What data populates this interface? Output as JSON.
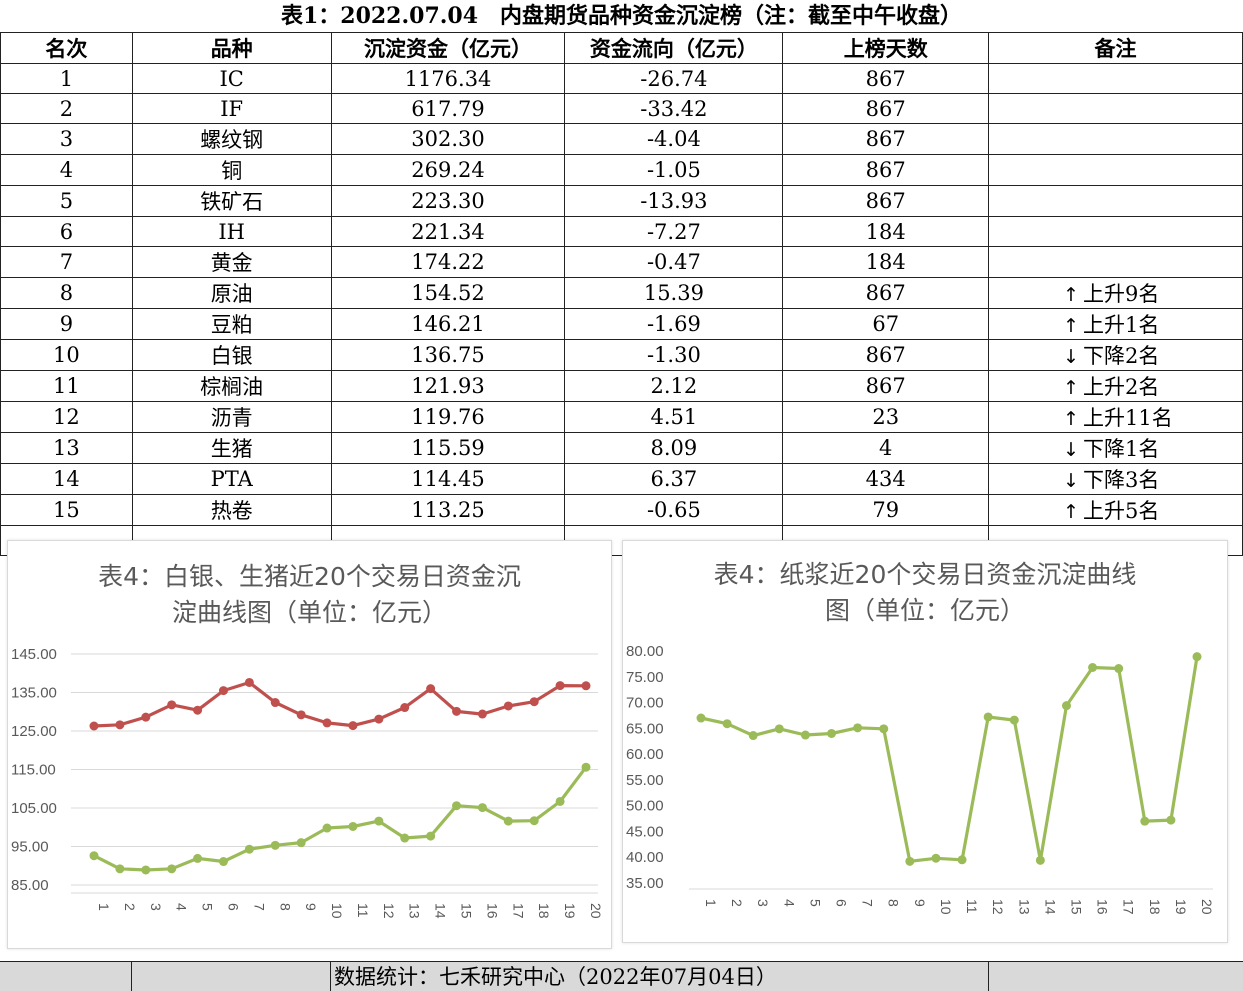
{
  "table_title": "表1：2022.07.04　内盘期货品种资金沉淀榜（注：截至中午收盘）",
  "headers": [
    "名次",
    "品种",
    "沉淀资金（亿元）",
    "资金流向（亿元）",
    "上榜天数",
    "备注"
  ],
  "rows": [
    [
      "1",
      "IC",
      "1176.34",
      "-26.74",
      "867",
      ""
    ],
    [
      "2",
      "IF",
      "617.79",
      "-33.42",
      "867",
      ""
    ],
    [
      "3",
      "螺纹钢",
      "302.30",
      "-4.04",
      "867",
      ""
    ],
    [
      "4",
      "铜",
      "269.24",
      "-1.05",
      "867",
      ""
    ],
    [
      "5",
      "铁矿石",
      "223.30",
      "-13.93",
      "867",
      ""
    ],
    [
      "6",
      "IH",
      "221.34",
      "-7.27",
      "184",
      ""
    ],
    [
      "7",
      "黄金",
      "174.22",
      "-0.47",
      "184",
      ""
    ],
    [
      "8",
      "原油",
      "154.52",
      "15.39",
      "867",
      "↑上升9名"
    ],
    [
      "9",
      "豆粕",
      "146.21",
      "-1.69",
      "67",
      "↑上升1名"
    ],
    [
      "10",
      "白银",
      "136.75",
      "-1.30",
      "867",
      "↓下降2名"
    ],
    [
      "11",
      "棕榈油",
      "121.93",
      "2.12",
      "867",
      "↑上升2名"
    ],
    [
      "12",
      "沥青",
      "119.76",
      "4.51",
      "23",
      "↑上升11名"
    ],
    [
      "13",
      "生猪",
      "115.59",
      "8.09",
      "4",
      "↓下降1名"
    ],
    [
      "14",
      "PTA",
      "114.45",
      "6.37",
      "434",
      "↓下降3名"
    ],
    [
      "15",
      "热卷",
      "113.25",
      "-0.65",
      "79",
      "↑上升5名"
    ]
  ],
  "footer": "数据统计：七禾研究中心（2022年07月04日）",
  "chart_data": [
    {
      "type": "line",
      "title": "表4：白银、生猪近20个交易日资金沉淀曲线图（单位：亿元）",
      "title_lines": [
        "表4：白银、生猪近20个交易日资金沉",
        "淀曲线图（单位：亿元）"
      ],
      "x": [
        "1",
        "2",
        "3",
        "4",
        "5",
        "6",
        "7",
        "8",
        "9",
        "10",
        "11",
        "12",
        "13",
        "14",
        "15",
        "16",
        "17",
        "18",
        "19",
        "20"
      ],
      "y_ticks": [
        "145.00",
        "135.00",
        "125.00",
        "115.00",
        "105.00",
        "95.00",
        "85.00"
      ],
      "ylim": [
        85,
        145
      ],
      "grid": true,
      "series": [
        {
          "color": "#c0504d",
          "values": [
            126.3,
            126.6,
            128.6,
            131.8,
            130.4,
            135.5,
            137.6,
            132.4,
            129.2,
            127.1,
            126.4,
            128.1,
            131.1,
            136.0,
            130.1,
            129.4,
            131.5,
            132.6,
            136.8,
            136.75
          ]
        },
        {
          "color": "#9bbb59",
          "values": [
            92.6,
            89.2,
            88.9,
            89.2,
            91.9,
            91.1,
            94.3,
            95.3,
            96.0,
            99.8,
            100.2,
            101.6,
            97.2,
            97.7,
            105.6,
            105.1,
            101.6,
            101.7,
            106.7,
            115.59
          ]
        }
      ]
    },
    {
      "type": "line",
      "title": "表4：纸浆近20个交易日资金沉淀曲线图（单位：亿元）",
      "title_lines": [
        "表4：纸浆近20个交易日资金沉淀曲线",
        "图（单位：亿元）"
      ],
      "x": [
        "1",
        "2",
        "3",
        "4",
        "5",
        "6",
        "7",
        "8",
        "9",
        "10",
        "11",
        "12",
        "13",
        "14",
        "15",
        "16",
        "17",
        "18",
        "19",
        "20"
      ],
      "y_ticks": [
        "80.00",
        "75.00",
        "70.00",
        "65.00",
        "60.00",
        "55.00",
        "50.00",
        "45.00",
        "40.00",
        "35.00"
      ],
      "ylim": [
        35,
        80
      ],
      "grid": false,
      "series": [
        {
          "color": "#9bbb59",
          "values": [
            67.0,
            65.9,
            63.6,
            64.9,
            63.7,
            64.0,
            65.1,
            64.9,
            39.2,
            39.8,
            39.5,
            67.2,
            66.6,
            39.4,
            69.4,
            76.8,
            76.6,
            47.0,
            47.2,
            78.9
          ]
        }
      ]
    }
  ]
}
